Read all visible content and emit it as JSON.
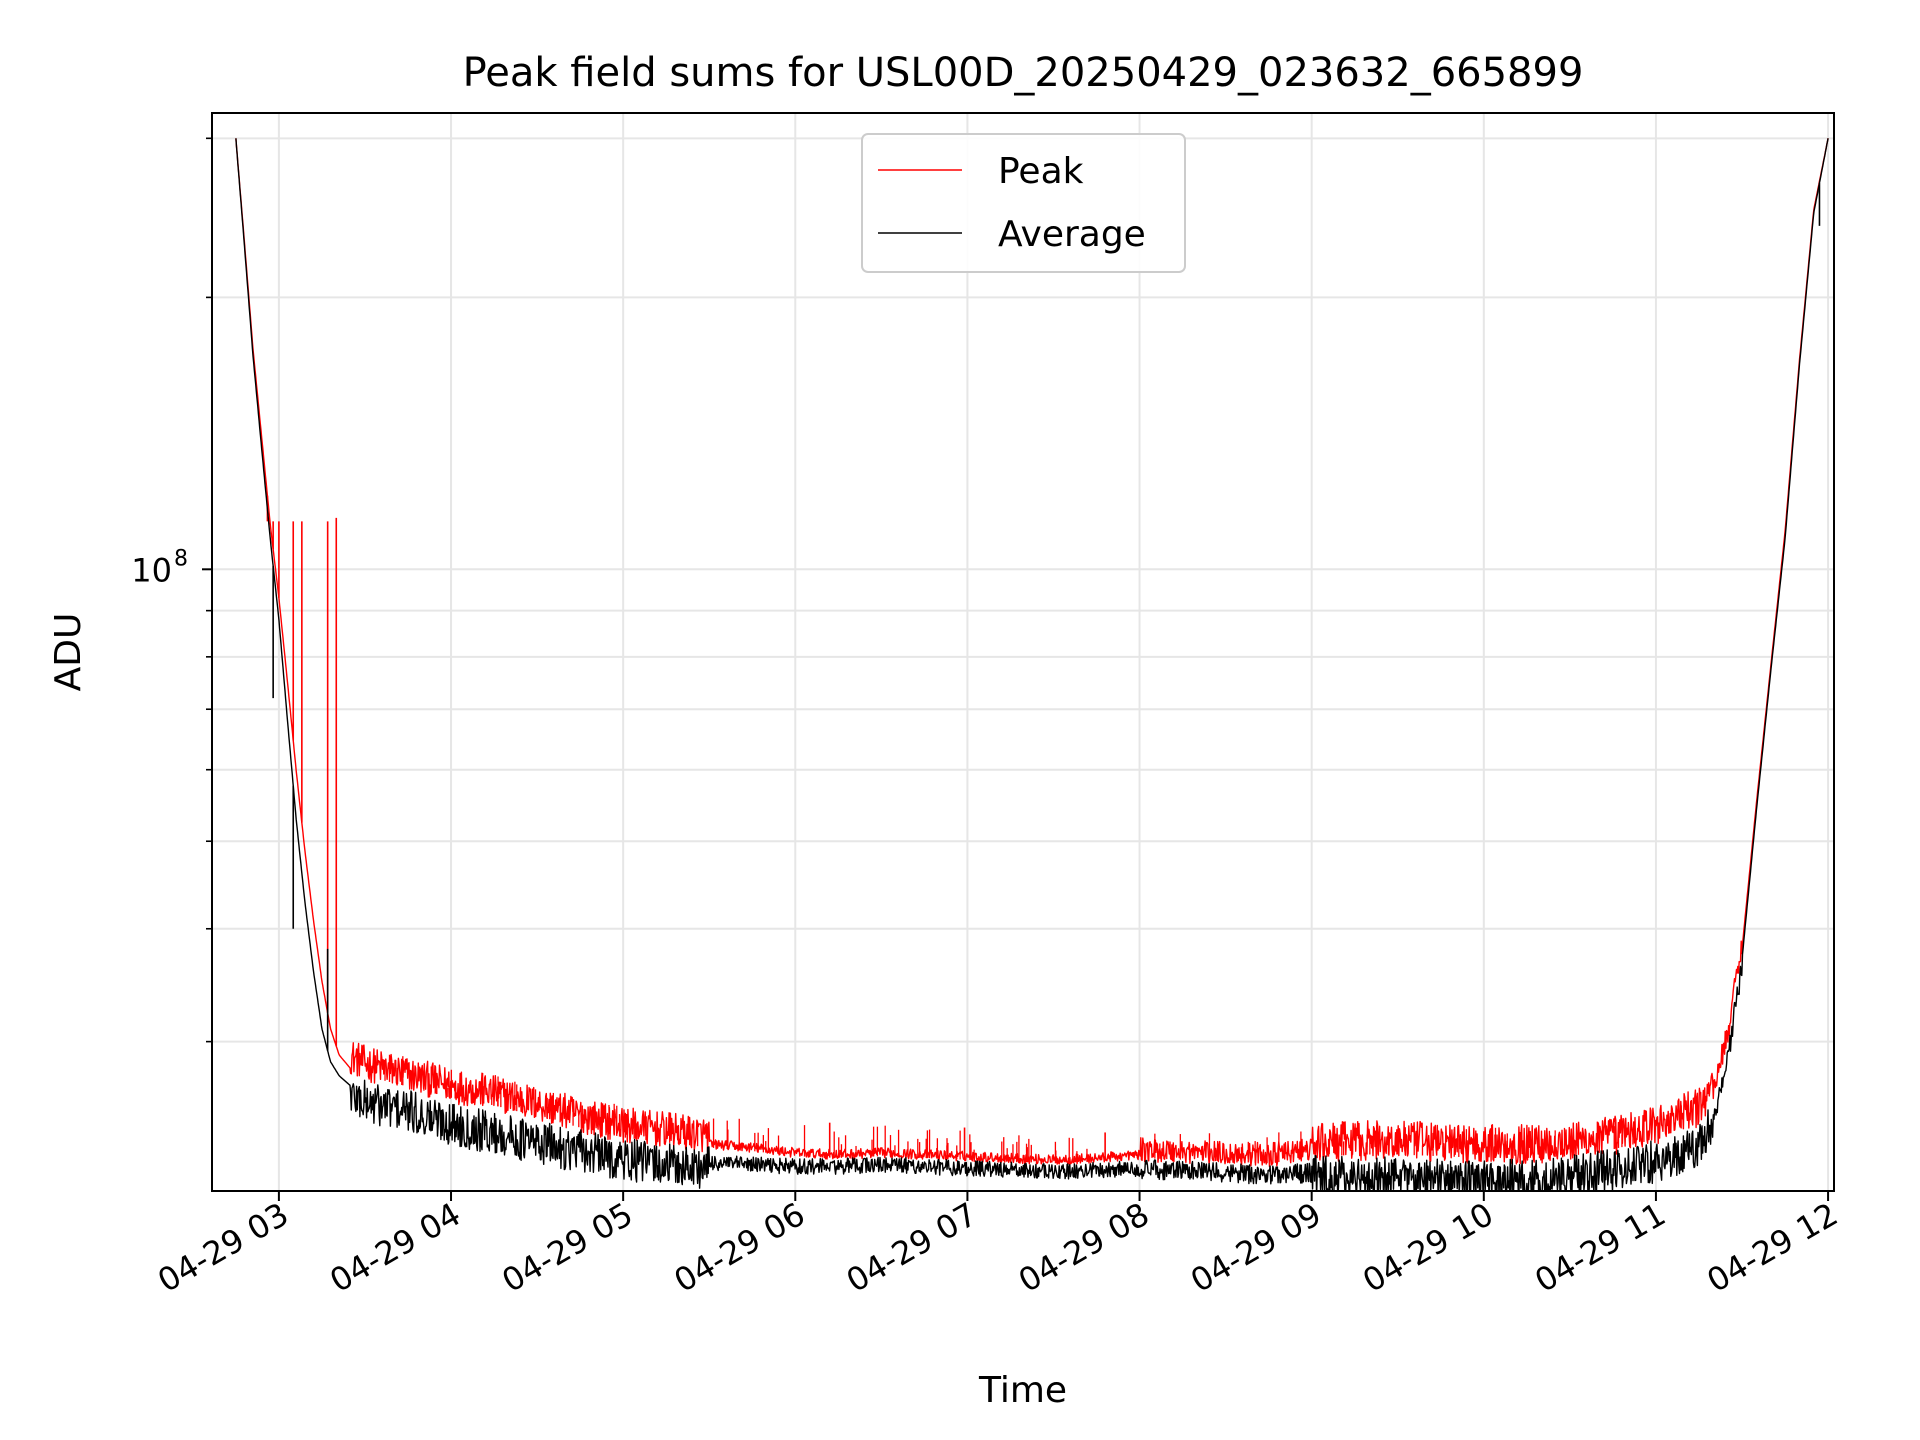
{
  "chart_data": {
    "type": "line",
    "title": "Peak field sums for USL00D_20250429_023632_665899",
    "xlabel": "Time",
    "ylabel": "ADU",
    "yscale": "log",
    "ylim": [
      20500000,
      320000000
    ],
    "xlim": [
      "04-29 02:36:41",
      "04-29 12:02:04"
    ],
    "x_ticks": [
      {
        "value": "2025-04-29 03:00",
        "label": "04-29 03"
      },
      {
        "value": "2025-04-29 04:00",
        "label": "04-29 04"
      },
      {
        "value": "2025-04-29 05:00",
        "label": "04-29 05"
      },
      {
        "value": "2025-04-29 06:00",
        "label": "04-29 06"
      },
      {
        "value": "2025-04-29 07:00",
        "label": "04-29 07"
      },
      {
        "value": "2025-04-29 08:00",
        "label": "04-29 08"
      },
      {
        "value": "2025-04-29 09:00",
        "label": "04-29 09"
      },
      {
        "value": "2025-04-29 10:00",
        "label": "04-29 10"
      },
      {
        "value": "2025-04-29 11:00",
        "label": "04-29 11"
      },
      {
        "value": "2025-04-29 12:00",
        "label": "04-29 12"
      }
    ],
    "y_major_ticks": [
      {
        "value": 100000000,
        "label_base": "10",
        "label_exp": "8"
      }
    ],
    "y_minor_ticks": [
      30000000,
      40000000,
      50000000,
      60000000,
      70000000,
      80000000,
      90000000,
      200000000,
      300000000
    ],
    "grid": true,
    "legend": {
      "placement": "upper center"
    },
    "series": [
      {
        "name": "Peak",
        "color": "#ff0000",
        "x": [
          "02:45",
          "02:48",
          "02:51",
          "02:54",
          "02:57",
          "03:00",
          "03:03",
          "03:06",
          "03:09",
          "03:12",
          "03:15",
          "03:18",
          "03:21",
          "03:25",
          "03:30",
          "03:40",
          "03:50",
          "04:00",
          "04:15",
          "04:30",
          "04:45",
          "05:00",
          "05:15",
          "05:30",
          "05:45",
          "06:00",
          "06:15",
          "06:30",
          "06:45",
          "07:00",
          "07:15",
          "07:30",
          "07:45",
          "08:00",
          "08:15",
          "08:30",
          "08:45",
          "09:00",
          "09:15",
          "09:30",
          "09:45",
          "10:00",
          "10:15",
          "10:30",
          "10:45",
          "11:00",
          "11:15",
          "11:20",
          "11:25",
          "11:30",
          "11:35",
          "11:40",
          "11:45",
          "11:50",
          "11:55",
          "12:00"
        ],
        "y": [
          300000000,
          230000000,
          175000000,
          140000000,
          112000000,
          93000000,
          75000000,
          60000000,
          49000000,
          41000000,
          35000000,
          31000000,
          29000000,
          28000000,
          27500000,
          27000000,
          26500000,
          26000000,
          25500000,
          24800000,
          24100000,
          23500000,
          23200000,
          22900000,
          22700000,
          22400000,
          22300000,
          22400000,
          22300000,
          22200000,
          22100000,
          22000000,
          22100000,
          22300000,
          22200000,
          22100000,
          22000000,
          22300000,
          22500000,
          22500000,
          22400000,
          22300000,
          22300000,
          22400000,
          22800000,
          23400000,
          24500000,
          26000000,
          30000000,
          38000000,
          55000000,
          78000000,
          110000000,
          170000000,
          250000000,
          300000000
        ],
        "spikes": [
          {
            "x": "02:56",
            "y": 113000000
          },
          {
            "x": "02:58",
            "y": 113000000
          },
          {
            "x": "03:00",
            "y": 113000000
          },
          {
            "x": "03:05",
            "y": 113000000
          },
          {
            "x": "03:08",
            "y": 113000000
          },
          {
            "x": "03:17",
            "y": 113000000
          },
          {
            "x": "03:20",
            "y": 114000000
          },
          {
            "x": "03:55",
            "y": 27500000
          },
          {
            "x": "05:08",
            "y": 24800000
          },
          {
            "x": "06:12",
            "y": 24400000
          },
          {
            "x": "06:59",
            "y": 24100000
          },
          {
            "x": "07:48",
            "y": 23800000
          }
        ]
      },
      {
        "name": "Average",
        "color": "#000000",
        "x": [
          "02:45",
          "02:48",
          "02:51",
          "02:54",
          "02:57",
          "03:00",
          "03:03",
          "03:06",
          "03:09",
          "03:12",
          "03:15",
          "03:18",
          "03:21",
          "03:25",
          "03:30",
          "03:40",
          "03:50",
          "04:00",
          "04:15",
          "04:30",
          "04:45",
          "05:00",
          "05:15",
          "05:30",
          "05:45",
          "06:00",
          "06:15",
          "06:30",
          "06:45",
          "07:00",
          "07:15",
          "07:30",
          "07:45",
          "08:00",
          "08:15",
          "08:30",
          "08:45",
          "09:00",
          "09:15",
          "09:30",
          "09:45",
          "10:00",
          "10:15",
          "10:30",
          "10:45",
          "11:00",
          "11:15",
          "11:20",
          "11:25",
          "11:30",
          "11:35",
          "11:40",
          "11:45",
          "11:50",
          "11:55",
          "12:00"
        ],
        "y": [
          300000000,
          228000000,
          172000000,
          136000000,
          108000000,
          88000000,
          68000000,
          53000000,
          43000000,
          36000000,
          31000000,
          28500000,
          27500000,
          26800000,
          26300000,
          25900000,
          25400000,
          24900000,
          24300000,
          23700000,
          23200000,
          22700000,
          22400000,
          22200000,
          22100000,
          22000000,
          22000000,
          22100000,
          22000000,
          21900000,
          21800000,
          21700000,
          21800000,
          21900000,
          21800000,
          21700000,
          21600000,
          21700000,
          21700000,
          21600000,
          21500000,
          21500000,
          21500000,
          21700000,
          22100000,
          22600000,
          23500000,
          25000000,
          29000000,
          37000000,
          54000000,
          77000000,
          108000000,
          168000000,
          248000000,
          300000000
        ],
        "dips": [
          {
            "x": "02:58",
            "y": 72000000
          },
          {
            "x": "03:05",
            "y": 40000000
          },
          {
            "x": "03:17",
            "y": 38000000
          },
          {
            "x": "11:57",
            "y": 240000000
          }
        ]
      }
    ]
  }
}
